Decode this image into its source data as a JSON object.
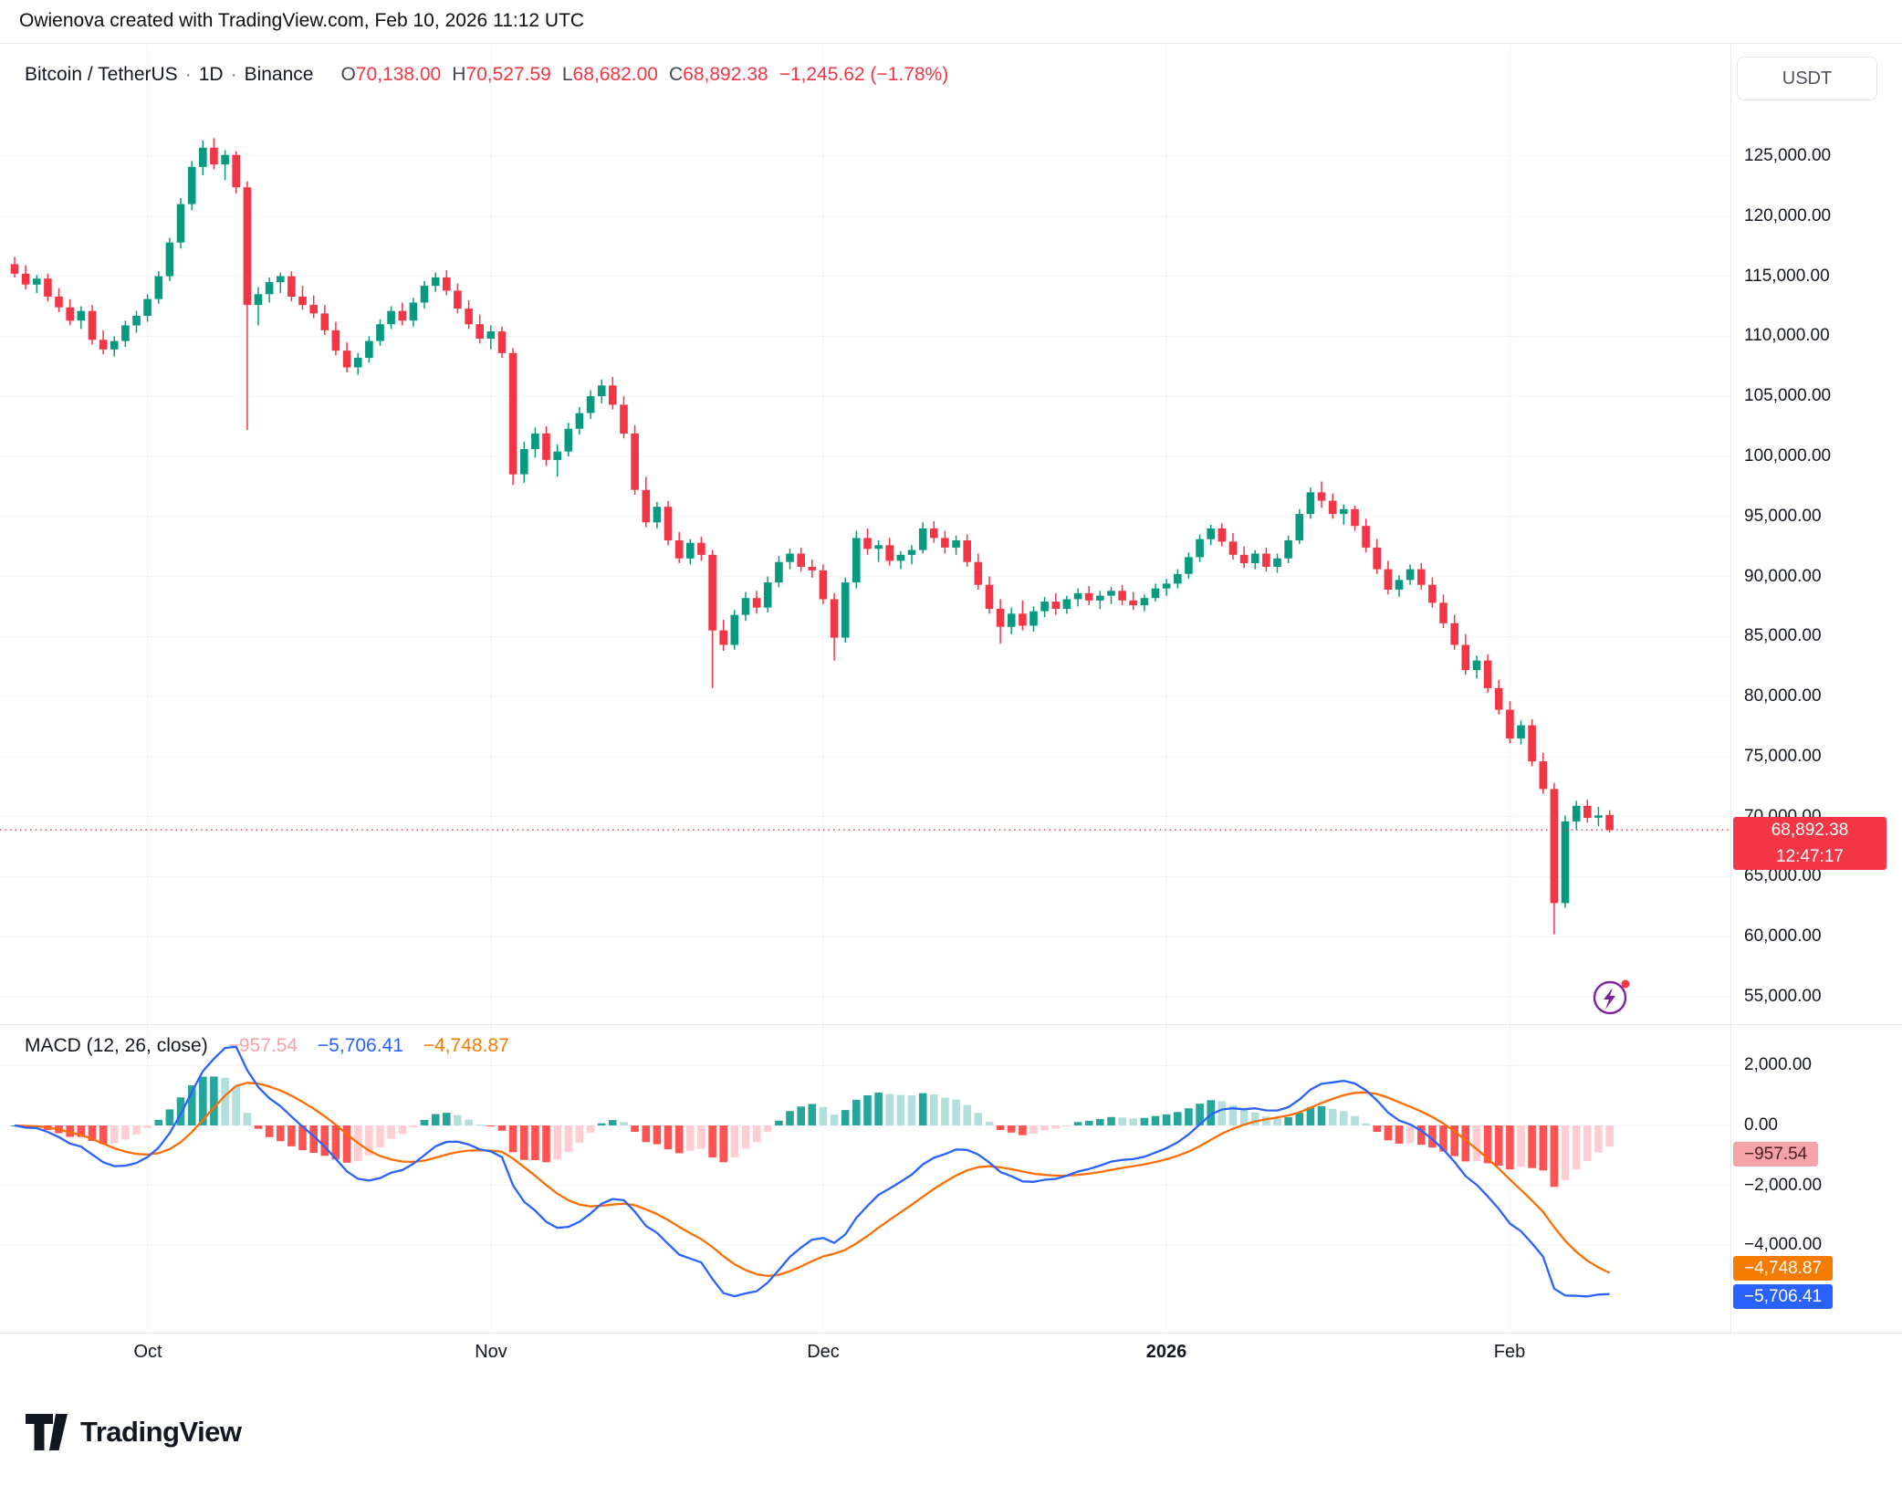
{
  "header": {
    "credit": "Owienova created with TradingView.com, Feb 10, 2026 11:12 UTC"
  },
  "legend": {
    "symbol": "Bitcoin / TetherUS",
    "separator": "·",
    "interval": "1D",
    "exchange": "Binance",
    "open_label": "O",
    "open": "70,138.00",
    "high_label": "H",
    "high": "70,527.59",
    "low_label": "L",
    "low": "68,682.00",
    "close_label": "C",
    "close": "68,892.38",
    "change": "−1,245.62 (−1.78%)"
  },
  "price_axis": {
    "currency_button": "USDT",
    "ticks": [
      {
        "label": "125,000.00",
        "value": 125000
      },
      {
        "label": "120,000.00",
        "value": 120000
      },
      {
        "label": "115,000.00",
        "value": 115000
      },
      {
        "label": "110,000.00",
        "value": 110000
      },
      {
        "label": "105,000.00",
        "value": 105000
      },
      {
        "label": "100,000.00",
        "value": 100000
      },
      {
        "label": "95,000.00",
        "value": 95000
      },
      {
        "label": "90,000.00",
        "value": 90000
      },
      {
        "label": "85,000.00",
        "value": 85000
      },
      {
        "label": "80,000.00",
        "value": 80000
      },
      {
        "label": "75,000.00",
        "value": 75000
      },
      {
        "label": "70,000.00",
        "value": 70000
      },
      {
        "label": "65,000.00",
        "value": 65000
      },
      {
        "label": "60,000.00",
        "value": 60000
      },
      {
        "label": "55,000.00",
        "value": 55000
      }
    ],
    "last_price_badge": {
      "price": "68,892.38",
      "countdown": "12:47:17"
    }
  },
  "time_axis": {
    "ticks": [
      {
        "label": "Oct",
        "day_index": 12
      },
      {
        "label": "Nov",
        "day_index": 43
      },
      {
        "label": "Dec",
        "day_index": 73
      },
      {
        "label": "2026",
        "day_index": 104,
        "bold": true
      },
      {
        "label": "Feb",
        "day_index": 135
      }
    ]
  },
  "macd": {
    "title": "MACD (12, 26, close)",
    "hist_value": "−957.54",
    "macd_value": "−5,706.41",
    "signal_value": "−4,748.87",
    "axis_ticks": [
      {
        "label": "2,000.00",
        "value": 2000
      },
      {
        "label": "0.00",
        "value": 0
      },
      {
        "label": "−2,000.00",
        "value": -2000
      },
      {
        "label": "−4,000.00",
        "value": -4000
      }
    ],
    "badges": {
      "hist": "−957.54",
      "signal": "−4,748.87",
      "macd": "−5,706.41"
    }
  },
  "footer": {
    "brand": "TradingView"
  },
  "colors": {
    "up": "#089981",
    "down": "#F23645",
    "grid": "#F0F3FA",
    "macd_line": "#2962FF",
    "signal_line": "#FF6D00",
    "hist_up": "#26A69A",
    "hist_up_light": "#B2DFDB",
    "hist_down": "#FF5252",
    "hist_down_light": "#FFCDD2",
    "last_price_line": "#F23645",
    "badge_price_bg": "#F23645",
    "badge_hist_bg": "#F5A3A8",
    "badge_signal_bg": "#F57C00",
    "badge_macd_bg": "#2962FF"
  },
  "chart_data": {
    "type": "candlestick",
    "title": "Bitcoin / TetherUS · 1D · Binance",
    "symbol": "Bitcoin / TetherUS",
    "exchange": "Binance",
    "interval": "1D",
    "start_date": "2025-09-19",
    "end_date": "2026-02-10",
    "price_axis": {
      "top_value": 125000,
      "bottom_value": 55000,
      "tick_step": 5000
    },
    "last_price": 68892.38,
    "candles_ohlc": [
      [
        116000,
        116600,
        114900,
        115200
      ],
      [
        115200,
        115900,
        113900,
        114300
      ],
      [
        114300,
        115100,
        113600,
        114800
      ],
      [
        114800,
        115200,
        112900,
        113300
      ],
      [
        113300,
        114000,
        112000,
        112400
      ],
      [
        112400,
        113100,
        110900,
        111300
      ],
      [
        111300,
        112500,
        110600,
        112100
      ],
      [
        112100,
        112600,
        109300,
        109700
      ],
      [
        109700,
        110500,
        108500,
        108900
      ],
      [
        108900,
        110000,
        108300,
        109600
      ],
      [
        109600,
        111300,
        109100,
        110900
      ],
      [
        110900,
        112100,
        110300,
        111700
      ],
      [
        111700,
        113500,
        111200,
        113100
      ],
      [
        113100,
        115400,
        112700,
        115000
      ],
      [
        115000,
        118200,
        114600,
        117800
      ],
      [
        117800,
        121500,
        117300,
        121000
      ],
      [
        121000,
        124600,
        120500,
        124100
      ],
      [
        124100,
        126300,
        123400,
        125700
      ],
      [
        125700,
        126500,
        123900,
        124300
      ],
      [
        124300,
        125500,
        123000,
        125100
      ],
      [
        125100,
        125400,
        121900,
        122400
      ],
      [
        122400,
        122900,
        102200,
        112600
      ],
      [
        112600,
        114100,
        110900,
        113500
      ],
      [
        113500,
        114900,
        112800,
        114500
      ],
      [
        114500,
        115300,
        113600,
        115000
      ],
      [
        115000,
        115400,
        112900,
        113300
      ],
      [
        113300,
        114200,
        112200,
        112600
      ],
      [
        112600,
        113400,
        111500,
        111900
      ],
      [
        111900,
        112600,
        110100,
        110500
      ],
      [
        110500,
        111200,
        108400,
        108800
      ],
      [
        108800,
        109500,
        107000,
        107400
      ],
      [
        107400,
        108600,
        106800,
        108200
      ],
      [
        108200,
        110000,
        107800,
        109600
      ],
      [
        109600,
        111400,
        109200,
        111000
      ],
      [
        111000,
        112500,
        110600,
        112100
      ],
      [
        112100,
        112800,
        110900,
        111300
      ],
      [
        111300,
        113200,
        110800,
        112800
      ],
      [
        112800,
        114600,
        112300,
        114200
      ],
      [
        114200,
        115300,
        113700,
        114900
      ],
      [
        114900,
        115500,
        113400,
        113800
      ],
      [
        113800,
        114400,
        111900,
        112300
      ],
      [
        112300,
        113000,
        110600,
        111000
      ],
      [
        111000,
        111800,
        109400,
        109800
      ],
      [
        109800,
        110900,
        108900,
        110400
      ],
      [
        110400,
        110800,
        108200,
        108600
      ],
      [
        108600,
        109000,
        97600,
        98500
      ],
      [
        98500,
        101200,
        97800,
        100600
      ],
      [
        100600,
        102400,
        99900,
        101900
      ],
      [
        101900,
        102500,
        99200,
        99700
      ],
      [
        99700,
        101000,
        98300,
        100400
      ],
      [
        100400,
        102800,
        100000,
        102300
      ],
      [
        102300,
        104100,
        101800,
        103600
      ],
      [
        103600,
        105500,
        103100,
        105000
      ],
      [
        105000,
        106400,
        104400,
        105900
      ],
      [
        105900,
        106600,
        103900,
        104300
      ],
      [
        104300,
        105000,
        101500,
        101900
      ],
      [
        101900,
        102600,
        96800,
        97200
      ],
      [
        97200,
        98300,
        94100,
        94500
      ],
      [
        94500,
        96200,
        94000,
        95800
      ],
      [
        95800,
        96300,
        92600,
        93000
      ],
      [
        93000,
        93700,
        91100,
        91500
      ],
      [
        91500,
        93100,
        91000,
        92800
      ],
      [
        92800,
        93300,
        91300,
        91800
      ],
      [
        91800,
        92200,
        80700,
        85500
      ],
      [
        85500,
        86400,
        83800,
        84300
      ],
      [
        84300,
        87200,
        83900,
        86800
      ],
      [
        86800,
        88700,
        86300,
        88200
      ],
      [
        88200,
        88800,
        86900,
        87400
      ],
      [
        87400,
        90000,
        87000,
        89500
      ],
      [
        89500,
        91700,
        89100,
        91200
      ],
      [
        91200,
        92300,
        90600,
        91900
      ],
      [
        91900,
        92400,
        90400,
        90800
      ],
      [
        90800,
        91400,
        89900,
        90500
      ],
      [
        90500,
        91000,
        87700,
        88100
      ],
      [
        88100,
        88600,
        83000,
        84900
      ],
      [
        84900,
        89900,
        84500,
        89500
      ],
      [
        89500,
        93800,
        89000,
        93200
      ],
      [
        93200,
        94000,
        91800,
        92300
      ],
      [
        92300,
        93000,
        91200,
        92600
      ],
      [
        92600,
        93200,
        90900,
        91300
      ],
      [
        91300,
        92100,
        90600,
        91800
      ],
      [
        91800,
        92600,
        91000,
        92200
      ],
      [
        92200,
        94500,
        91900,
        94000
      ],
      [
        94000,
        94600,
        92800,
        93200
      ],
      [
        93200,
        93800,
        91900,
        92400
      ],
      [
        92400,
        93400,
        91800,
        93000
      ],
      [
        93000,
        93500,
        90800,
        91200
      ],
      [
        91200,
        91900,
        88900,
        89300
      ],
      [
        89300,
        90000,
        86900,
        87300
      ],
      [
        87300,
        88100,
        84400,
        85800
      ],
      [
        85800,
        87400,
        85200,
        86900
      ],
      [
        86900,
        88000,
        85500,
        85900
      ],
      [
        85900,
        87500,
        85400,
        87100
      ],
      [
        87100,
        88300,
        86600,
        87900
      ],
      [
        87900,
        88600,
        86800,
        87300
      ],
      [
        87300,
        88400,
        86900,
        88100
      ],
      [
        88100,
        89000,
        87500,
        88600
      ],
      [
        88600,
        89200,
        87600,
        88000
      ],
      [
        88000,
        88800,
        87300,
        88400
      ],
      [
        88400,
        89100,
        87700,
        88800
      ],
      [
        88800,
        89300,
        87600,
        88000
      ],
      [
        88000,
        88700,
        87200,
        87600
      ],
      [
        87600,
        88500,
        87100,
        88200
      ],
      [
        88200,
        89400,
        87900,
        89000
      ],
      [
        89000,
        89800,
        88400,
        89400
      ],
      [
        89400,
        90600,
        89000,
        90200
      ],
      [
        90200,
        92000,
        89800,
        91600
      ],
      [
        91600,
        93500,
        91200,
        93100
      ],
      [
        93100,
        94300,
        92600,
        94000
      ],
      [
        94000,
        94400,
        92500,
        92900
      ],
      [
        92900,
        93600,
        91400,
        91800
      ],
      [
        91800,
        92500,
        90700,
        91100
      ],
      [
        91100,
        92200,
        90600,
        91900
      ],
      [
        91900,
        92400,
        90400,
        90800
      ],
      [
        90800,
        91900,
        90300,
        91500
      ],
      [
        91500,
        93400,
        91100,
        93000
      ],
      [
        93000,
        95600,
        92700,
        95200
      ],
      [
        95200,
        97400,
        94800,
        97000
      ],
      [
        97000,
        97900,
        95700,
        96300
      ],
      [
        96300,
        96900,
        94800,
        95200
      ],
      [
        95200,
        96000,
        94300,
        95600
      ],
      [
        95600,
        95900,
        93800,
        94200
      ],
      [
        94200,
        94800,
        92000,
        92400
      ],
      [
        92400,
        93100,
        90200,
        90600
      ],
      [
        90600,
        91300,
        88500,
        88900
      ],
      [
        88900,
        90100,
        88300,
        89700
      ],
      [
        89700,
        91000,
        89300,
        90600
      ],
      [
        90600,
        91100,
        88900,
        89300
      ],
      [
        89300,
        89900,
        87400,
        87800
      ],
      [
        87800,
        88500,
        85700,
        86100
      ],
      [
        86100,
        86800,
        83900,
        84300
      ],
      [
        84300,
        85200,
        81800,
        82200
      ],
      [
        82200,
        83400,
        81500,
        83000
      ],
      [
        83000,
        83500,
        80300,
        80700
      ],
      [
        80700,
        81400,
        78500,
        78900
      ],
      [
        78900,
        79600,
        76100,
        76500
      ],
      [
        76500,
        78000,
        76000,
        77600
      ],
      [
        77600,
        78100,
        74200,
        74600
      ],
      [
        74600,
        75300,
        71900,
        72300
      ],
      [
        72300,
        72800,
        60200,
        62800
      ],
      [
        62800,
        70100,
        62400,
        69600
      ],
      [
        69600,
        71300,
        68900,
        70900
      ],
      [
        70900,
        71400,
        69500,
        69900
      ],
      [
        69900,
        70800,
        69200,
        70100
      ],
      [
        70138,
        70527.59,
        68682,
        68892.38
      ]
    ],
    "indicator": {
      "name": "MACD",
      "params": [
        12,
        26,
        "close"
      ],
      "signal_period": 9,
      "last_values": {
        "histogram": -957.54,
        "macd": -5706.41,
        "signal": -4748.87
      },
      "axis_tick_values": [
        2000,
        0,
        -2000,
        -4000
      ]
    }
  }
}
